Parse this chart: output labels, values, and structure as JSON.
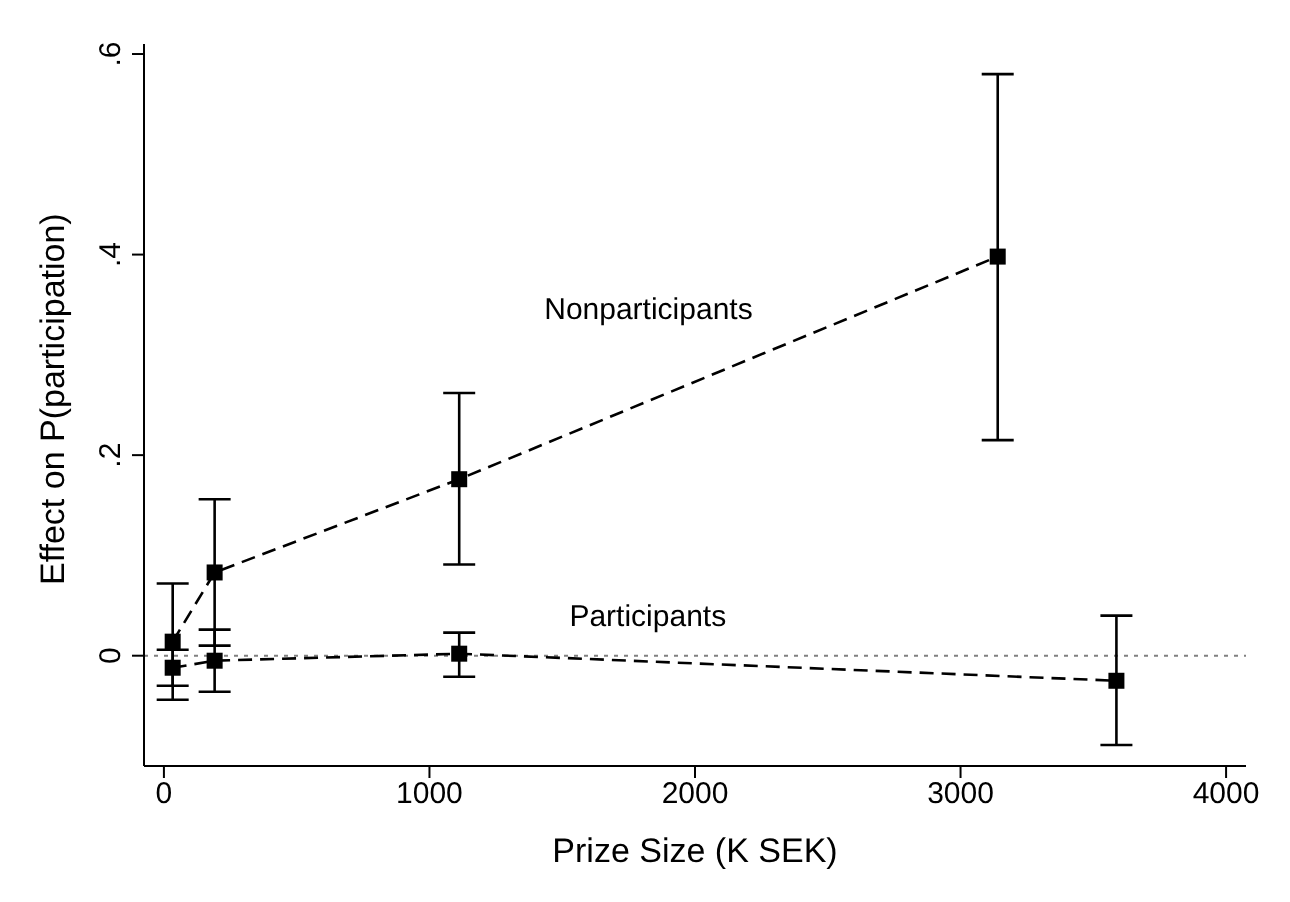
{
  "chart_data": {
    "type": "line",
    "xlabel": "Prize Size (K SEK)",
    "ylabel": "Effect on P(participation)",
    "xlim": [
      -75,
      4075
    ],
    "xticks": [
      0,
      1000,
      2000,
      3000,
      4000
    ],
    "ylim": [
      -0.11,
      0.61
    ],
    "yticks": [
      0,
      {
        "value": 0.2,
        "label": ".2"
      },
      {
        "value": 0.4,
        "label": ".4"
      },
      {
        "value": 0.6,
        "label": ".6"
      }
    ],
    "marker": "square",
    "line_style": "dashed",
    "grid": false,
    "legend": false,
    "series": [
      {
        "name": "Nonparticipants",
        "color": "#000000",
        "x": [
          33,
          191,
          1112,
          3140
        ],
        "values": [
          0.014,
          0.083,
          0.176,
          0.398
        ],
        "errors": [
          [
            -0.044,
            0.072
          ],
          [
            0.01,
            0.156
          ],
          [
            0.091,
            0.262
          ],
          [
            0.215,
            0.58
          ]
        ]
      },
      {
        "name": "Participants",
        "color": "#000000",
        "x": [
          33,
          191,
          1112,
          3587
        ],
        "values": [
          -0.012,
          -0.005,
          0.002,
          -0.025
        ],
        "errors": [
          [
            -0.03,
            0.006
          ],
          [
            -0.036,
            0.026
          ],
          [
            -0.021,
            0.023
          ],
          [
            -0.089,
            0.04
          ]
        ]
      }
    ],
    "ref_lines": [
      {
        "axis": "y",
        "value": 0,
        "color": "#808080",
        "line_style": "dotted"
      }
    ]
  }
}
